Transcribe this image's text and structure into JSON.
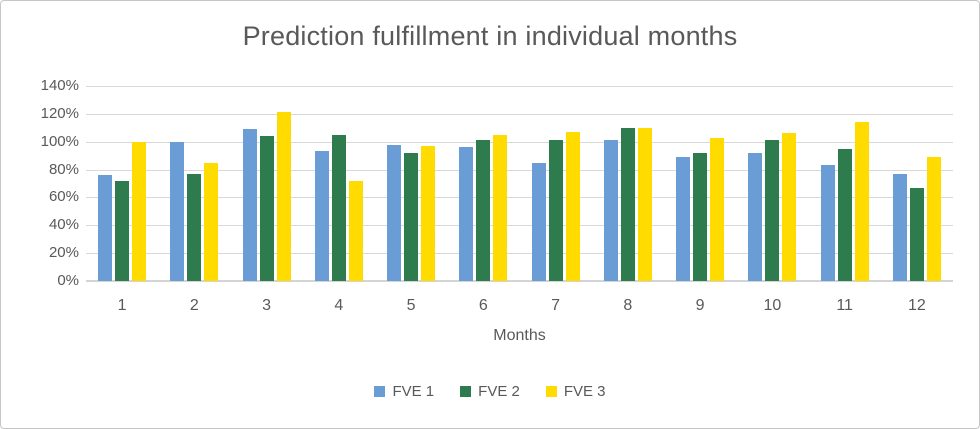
{
  "styles": {
    "text_color": "#595959",
    "grid_color": "#d9d9d9",
    "axis_color": "#d4d4d4",
    "border_color": "#c6c6c6",
    "background": "#ffffff"
  },
  "chart_data": {
    "type": "bar",
    "title": "Prediction fulfillment in individual months",
    "xlabel": "Months",
    "ylabel": "",
    "categories": [
      "1",
      "2",
      "3",
      "4",
      "5",
      "6",
      "7",
      "8",
      "9",
      "10",
      "11",
      "12"
    ],
    "series": [
      {
        "name": "FVE 1",
        "color": "#6a9cd5",
        "values": [
          76,
          100,
          109,
          93,
          98,
          96,
          85,
          101,
          89,
          92,
          83,
          77
        ]
      },
      {
        "name": "FVE 2",
        "color": "#2e7b4e",
        "values": [
          72,
          77,
          104,
          105,
          92,
          101,
          101,
          110,
          92,
          101,
          95,
          67
        ]
      },
      {
        "name": "FVE 3",
        "color": "#ffdb00",
        "values": [
          100,
          85,
          121,
          72,
          97,
          105,
          107,
          110,
          103,
          106,
          114,
          89
        ]
      }
    ],
    "ylim": [
      0,
      140
    ],
    "yticks": [
      {
        "value": 0,
        "label": "0%"
      },
      {
        "value": 20,
        "label": "20%"
      },
      {
        "value": 40,
        "label": "40%"
      },
      {
        "value": 60,
        "label": "60%"
      },
      {
        "value": 80,
        "label": "80%"
      },
      {
        "value": 100,
        "label": "100%"
      },
      {
        "value": 120,
        "label": "120%"
      },
      {
        "value": 140,
        "label": "140%"
      }
    ],
    "grid": true,
    "legend_position": "bottom"
  }
}
